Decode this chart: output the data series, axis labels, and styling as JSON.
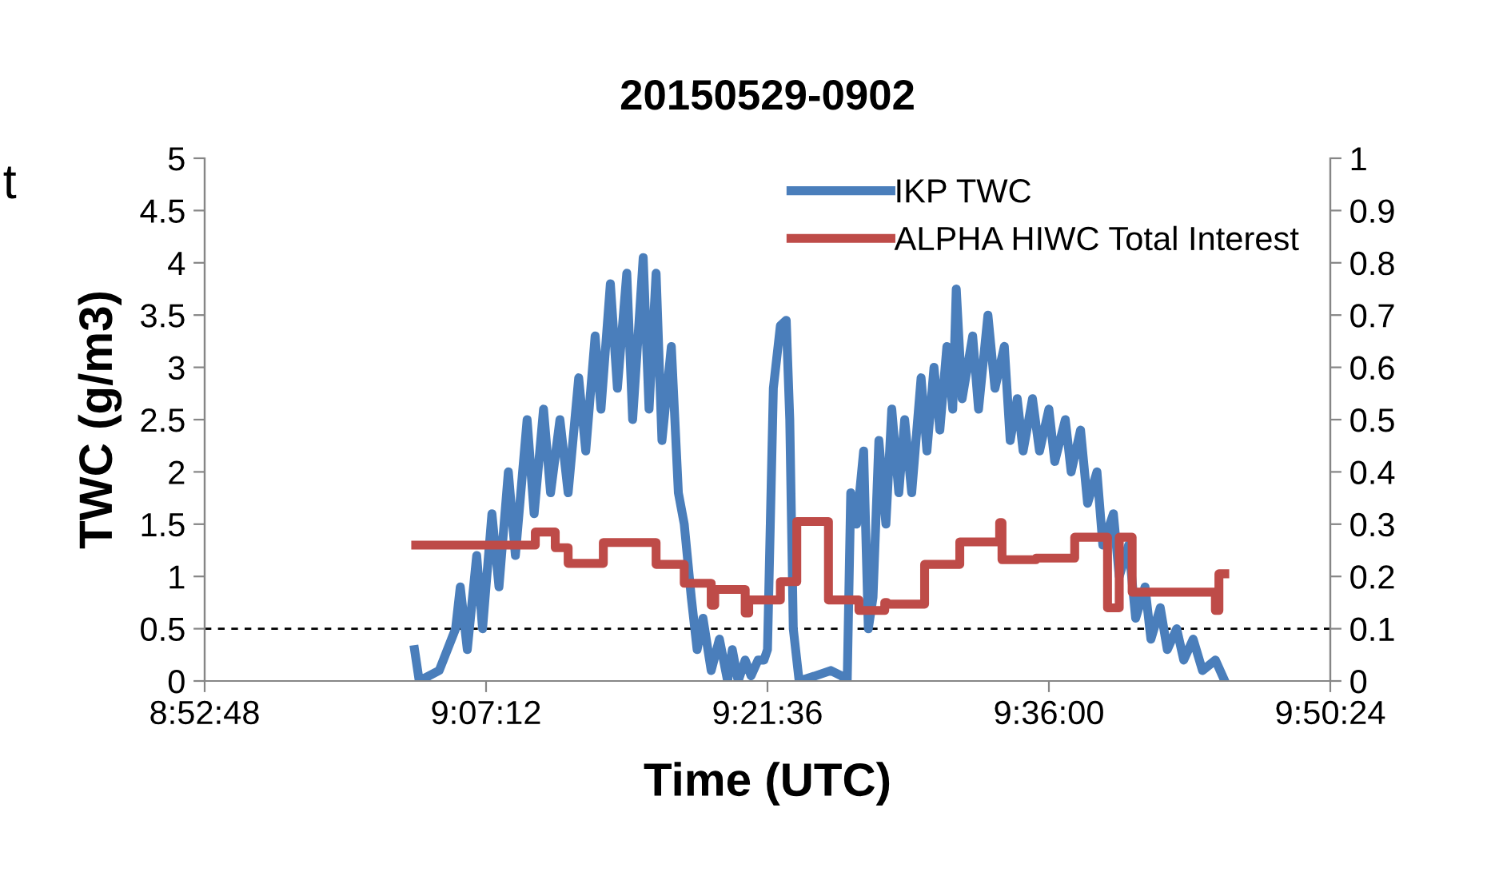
{
  "chart_data": {
    "type": "line",
    "title": "20150529-0902",
    "xlabel": "Time (UTC)",
    "ylabel": "TWC (g/m3)",
    "annotations": [
      "t"
    ],
    "xlim": [
      8.88,
      9.84
    ],
    "xticks": [
      {
        "value": 8.88,
        "label": "8:52:48"
      },
      {
        "value": 9.12,
        "label": "9:07:12"
      },
      {
        "value": 9.36,
        "label": "9:21:36"
      },
      {
        "value": 9.6,
        "label": "9:36:00"
      },
      {
        "value": 9.84,
        "label": "9:50:24"
      }
    ],
    "ylim": [
      0,
      5
    ],
    "yticks": [
      0,
      0.5,
      1,
      1.5,
      2,
      2.5,
      3,
      3.5,
      4,
      4.5,
      5
    ],
    "y2lim": [
      0,
      1
    ],
    "y2ticks": [
      0,
      0.1,
      0.2,
      0.3,
      0.4,
      0.5,
      0.6,
      0.7,
      0.8,
      0.9,
      1
    ],
    "legend": "top right",
    "grid": false,
    "ref_lines": [
      {
        "axis": "y",
        "value": 0.5,
        "color": "#000000",
        "line_style": "dashed"
      }
    ],
    "series": [
      {
        "name": "IKP TWC",
        "color": "#4a7ebb",
        "x": [
          9.059,
          9.063,
          9.08,
          9.094,
          9.098,
          9.104,
          9.112,
          9.117,
          9.125,
          9.131,
          9.139,
          9.145,
          9.155,
          9.161,
          9.169,
          9.175,
          9.183,
          9.19,
          9.199,
          9.205,
          9.213,
          9.218,
          9.226,
          9.232,
          9.24,
          9.245,
          9.254,
          9.259,
          9.265,
          9.27,
          9.278,
          9.284,
          9.289,
          9.295,
          9.3,
          9.305,
          9.312,
          9.319,
          9.326,
          9.33,
          9.335,
          9.341,
          9.346,
          9.352,
          9.357,
          9.36,
          9.365,
          9.371,
          9.376,
          9.379,
          9.382,
          9.387,
          9.401,
          9.414,
          9.423,
          9.428,
          9.431,
          9.436,
          9.442,
          9.446,
          9.45,
          9.455,
          9.461,
          9.466,
          9.472,
          9.477,
          9.483,
          9.491,
          9.496,
          9.502,
          9.507,
          9.513,
          9.518,
          9.521,
          9.526,
          9.535,
          9.54,
          9.548,
          9.554,
          9.562,
          9.567,
          9.573,
          9.578,
          9.586,
          9.592,
          9.6,
          9.605,
          9.614,
          9.619,
          9.627,
          9.633,
          9.641,
          9.646,
          9.655,
          9.66,
          9.668,
          9.674,
          9.682,
          9.687,
          9.695,
          9.701,
          9.709,
          9.715,
          9.723,
          9.731,
          9.742,
          9.75
        ],
        "values": [
          0.3,
          0,
          0.1,
          0.5,
          0.9,
          0.3,
          1.2,
          0.5,
          1.6,
          0.9,
          2.0,
          1.2,
          2.5,
          1.6,
          2.6,
          1.8,
          2.5,
          1.8,
          2.9,
          2.2,
          3.3,
          2.6,
          3.8,
          2.8,
          3.9,
          2.5,
          4.05,
          2.6,
          3.9,
          2.3,
          3.2,
          1.8,
          1.5,
          0.8,
          0.3,
          0.6,
          0.1,
          0.4,
          0,
          0.3,
          0,
          0.2,
          0.05,
          0.2,
          0.2,
          0.3,
          2.8,
          3.4,
          3.45,
          2.5,
          0.5,
          0,
          0.05,
          0.1,
          0.05,
          0,
          1.8,
          1.5,
          2.2,
          0.5,
          0.8,
          2.3,
          1.5,
          2.6,
          1.8,
          2.5,
          1.8,
          2.9,
          2.2,
          3.0,
          2.4,
          3.2,
          2.6,
          3.75,
          2.7,
          3.3,
          2.6,
          3.5,
          2.8,
          3.2,
          2.3,
          2.7,
          2.2,
          2.7,
          2.2,
          2.6,
          2.1,
          2.5,
          2.0,
          2.4,
          1.7,
          2.0,
          1.3,
          1.6,
          1.0,
          1.3,
          0.6,
          0.9,
          0.4,
          0.7,
          0.3,
          0.5,
          0.2,
          0.4,
          0.1,
          0.2,
          0
        ]
      },
      {
        "name": "ALPHA HIWC Total Interest",
        "color": "#be4b48",
        "type": "step",
        "axis": "y2",
        "x": [
          9.06,
          9.162,
          9.179,
          9.19,
          9.22,
          9.265,
          9.289,
          9.312,
          9.315,
          9.341,
          9.344,
          9.371,
          9.385,
          9.412,
          9.438,
          9.46,
          9.462,
          9.494,
          9.524,
          9.558,
          9.56,
          9.589,
          9.622,
          9.65,
          9.66,
          9.671,
          9.742,
          9.745,
          9.75
        ],
        "values": [
          0.26,
          0.285,
          0.255,
          0.225,
          0.265,
          0.223,
          0.187,
          0.145,
          0.175,
          0.13,
          0.155,
          0.19,
          0.305,
          0.155,
          0.135,
          0.15,
          0.147,
          0.223,
          0.266,
          0.303,
          0.232,
          0.235,
          0.275,
          0.14,
          0.275,
          0.17,
          0.135,
          0.205,
          0.205
        ]
      }
    ]
  }
}
